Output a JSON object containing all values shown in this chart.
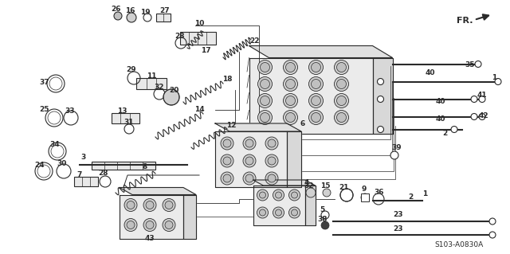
{
  "background_color": "#ffffff",
  "diagram_color": "#2a2a2a",
  "fig_width": 6.4,
  "fig_height": 3.19,
  "dpi": 100,
  "watermark": "S103-A0830A"
}
